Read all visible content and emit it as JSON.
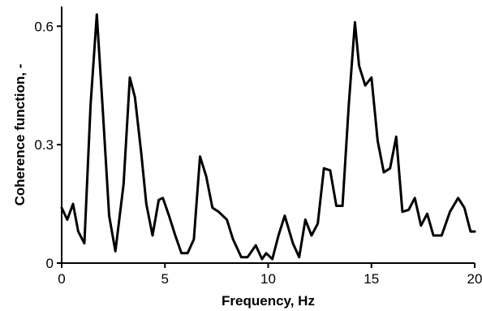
{
  "chart_data": {
    "type": "line",
    "xlabel": "Frequency, Hz",
    "ylabel": "Coherence function, -",
    "xlim": [
      0,
      20
    ],
    "ylim": [
      0,
      0.65
    ],
    "xticks": [
      0,
      5,
      10,
      15,
      20
    ],
    "xtick_labels": [
      "0",
      "5",
      "10",
      "15",
      "20"
    ],
    "yticks": [
      0,
      0.3,
      0.6
    ],
    "ytick_labels": [
      "0",
      "0.3",
      "0.6"
    ],
    "grid": false,
    "series": [
      {
        "color": "#000000",
        "x": [
          0.0,
          0.27,
          0.55,
          0.8,
          1.1,
          1.4,
          1.7,
          2.0,
          2.3,
          2.6,
          3.0,
          3.3,
          3.55,
          3.85,
          4.1,
          4.4,
          4.7,
          4.9,
          5.2,
          5.5,
          5.8,
          6.1,
          6.4,
          6.7,
          7.0,
          7.3,
          7.6,
          8.0,
          8.3,
          8.7,
          9.0,
          9.4,
          9.7,
          9.9,
          10.2,
          10.5,
          10.8,
          11.2,
          11.5,
          11.8,
          12.1,
          12.4,
          12.7,
          13.0,
          13.3,
          13.6,
          13.9,
          14.2,
          14.4,
          14.7,
          15.0,
          15.3,
          15.6,
          15.9,
          16.2,
          16.5,
          16.8,
          17.1,
          17.4,
          17.7,
          18.0,
          18.4,
          18.8,
          19.2,
          19.5,
          19.8,
          20.0
        ],
        "y": [
          0.14,
          0.11,
          0.15,
          0.08,
          0.05,
          0.4,
          0.63,
          0.38,
          0.12,
          0.03,
          0.2,
          0.47,
          0.42,
          0.28,
          0.15,
          0.07,
          0.16,
          0.165,
          0.12,
          0.07,
          0.025,
          0.025,
          0.06,
          0.27,
          0.22,
          0.14,
          0.13,
          0.11,
          0.06,
          0.015,
          0.015,
          0.045,
          0.01,
          0.025,
          0.01,
          0.07,
          0.12,
          0.05,
          0.015,
          0.11,
          0.07,
          0.1,
          0.24,
          0.235,
          0.145,
          0.145,
          0.4,
          0.61,
          0.5,
          0.45,
          0.47,
          0.31,
          0.23,
          0.24,
          0.32,
          0.13,
          0.135,
          0.165,
          0.095,
          0.125,
          0.07,
          0.07,
          0.13,
          0.165,
          0.14,
          0.08,
          0.08
        ]
      }
    ]
  }
}
